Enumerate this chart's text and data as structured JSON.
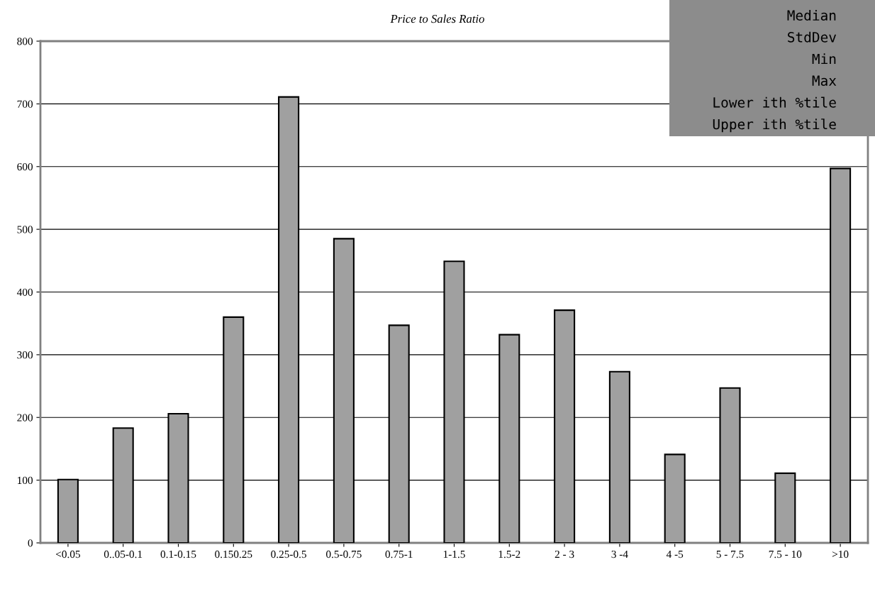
{
  "chart_data": {
    "type": "bar",
    "title": "Price to Sales Ratio",
    "categories": [
      "<0.05",
      "0..05-0.1",
      "0.1-0.15",
      "0.150.25",
      "0.25-0.5",
      "0.5-0.75",
      "0.75-1",
      "1-1.5",
      "1.5-2",
      "2 - 3",
      "3 -4",
      "4 -5",
      "5 - 7.5",
      "7.5 - 10",
      ">10"
    ],
    "values": [
      101,
      183,
      206,
      360,
      711,
      485,
      347,
      449,
      332,
      371,
      273,
      141,
      247,
      111,
      597
    ],
    "color": "#a0a0a0",
    "ylim": [
      0,
      800
    ],
    "yticks": [
      0,
      100,
      200,
      300,
      400,
      500,
      600,
      700,
      800
    ],
    "grid": "y",
    "annotations": [
      "Median",
      "StdDev",
      "Min",
      "Max",
      "Lower ith %tile",
      "Upper ith %tile"
    ]
  }
}
